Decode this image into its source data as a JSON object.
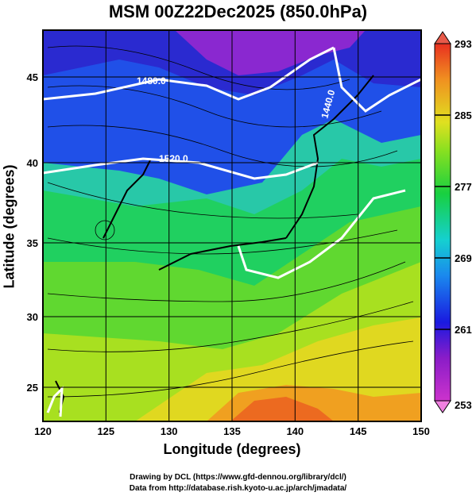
{
  "title": "MSM 00Z22Dec2025 (850.0hPa)",
  "xlabel": "Longitude (degrees)",
  "ylabel": "Latitude  (degrees)",
  "credit1": "Drawing by DCL (https://www.gfd-dennou.org/library/dcl/)",
  "credit2": "Data from http://database.rish.kyoto-u.ac.jp/arch/jmadata/",
  "map": {
    "lon_range": [
      120,
      150
    ],
    "lat_range": [
      22.4,
      47.6
    ],
    "lon_ticks": [
      "120",
      "125",
      "130",
      "135",
      "140",
      "145",
      "150"
    ],
    "lat_ticks": [
      "25",
      "30",
      "35",
      "40",
      "45"
    ],
    "grid": true
  },
  "contours": [
    {
      "label": "1480.0"
    },
    {
      "label": "1520.0"
    },
    {
      "label": "1440.0"
    }
  ],
  "colorbar": {
    "labels": [
      "293",
      "285",
      "277",
      "269",
      "261",
      "253"
    ]
  }
}
